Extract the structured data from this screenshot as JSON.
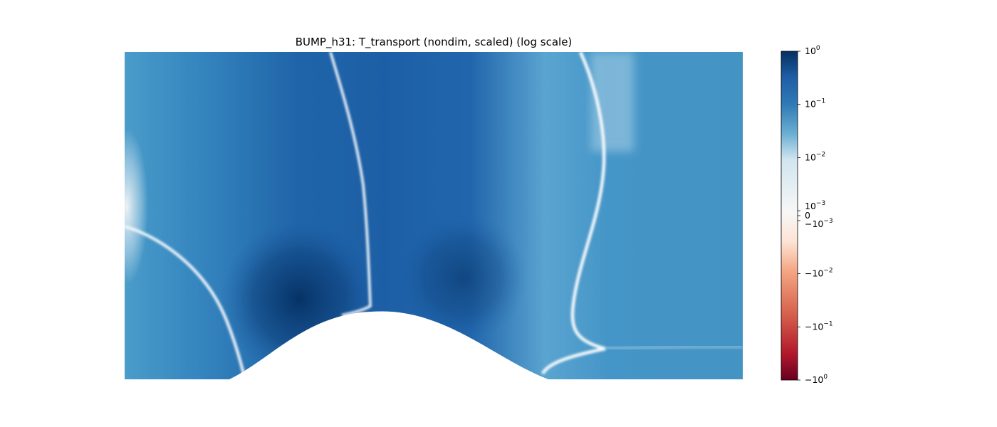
{
  "chart_data": {
    "type": "heatmap",
    "title": "BUMP_h31: T_transport (nondim, scaled) (log scale)",
    "xlabel": "",
    "ylabel": "",
    "axes_visible": false,
    "grid": false,
    "colormap": "RdBu",
    "color_scale": "symlog",
    "colorbar": {
      "placement": "right",
      "range": [
        -1,
        1
      ],
      "ticks": [
        {
          "base": "10",
          "exp": "0",
          "prefix": "",
          "value": 1
        },
        {
          "base": "10",
          "exp": "−1",
          "prefix": "",
          "value": 0.1
        },
        {
          "base": "10",
          "exp": "−2",
          "prefix": "",
          "value": 0.01
        },
        {
          "base": "10",
          "exp": "−3",
          "prefix": "",
          "value": 0.001
        },
        {
          "base": "0",
          "exp": "",
          "prefix": "",
          "value": 0
        },
        {
          "base": "10",
          "exp": "−3",
          "prefix": "−",
          "value": -0.001
        },
        {
          "base": "10",
          "exp": "−2",
          "prefix": "−",
          "value": -0.01
        },
        {
          "base": "10",
          "exp": "−1",
          "prefix": "−",
          "value": -0.1
        },
        {
          "base": "10",
          "exp": "0",
          "prefix": "−",
          "value": -1
        }
      ]
    },
    "field_description_regions": [
      {
        "region": "upstream-near-inlet",
        "level": "moderate-positive"
      },
      {
        "region": "left-of-bump-lower",
        "level": "strong-positive"
      },
      {
        "region": "above-bump-crest",
        "level": "strong-positive"
      },
      {
        "region": "downstream-far",
        "level": "moderate-positive"
      }
    ]
  }
}
